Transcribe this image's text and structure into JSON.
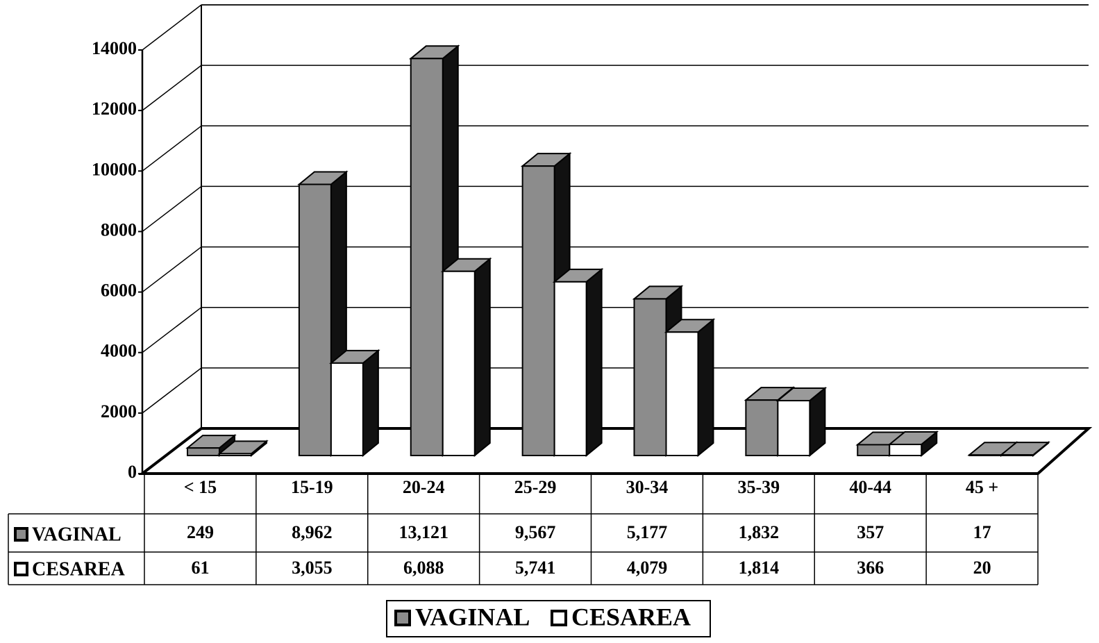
{
  "chart_data": {
    "type": "bar3d",
    "categories": [
      "< 15",
      "15-19",
      "20-24",
      "25-29",
      "30-34",
      "35-39",
      "40-44",
      "45 +"
    ],
    "series": [
      {
        "name": "VAGINAL",
        "color": "#8c8c8c",
        "values": [
          249,
          8962,
          13121,
          9567,
          5177,
          1832,
          357,
          17
        ],
        "value_labels": [
          "249",
          "8,962",
          "13,121",
          "9,567",
          "5,177",
          "1,832",
          "357",
          "17"
        ]
      },
      {
        "name": "CESAREA",
        "color": "#ffffff",
        "values": [
          61,
          3055,
          6088,
          5741,
          4079,
          1814,
          366,
          20
        ],
        "value_labels": [
          "61",
          "3,055",
          "6,088",
          "5,741",
          "4,079",
          "1,814",
          "366",
          "20"
        ]
      }
    ],
    "ylim": [
      0,
      14000
    ],
    "yticks": [
      0,
      2000,
      4000,
      6000,
      8000,
      10000,
      12000,
      14000
    ],
    "grid": true,
    "data_table": true,
    "legend": "bottom"
  }
}
